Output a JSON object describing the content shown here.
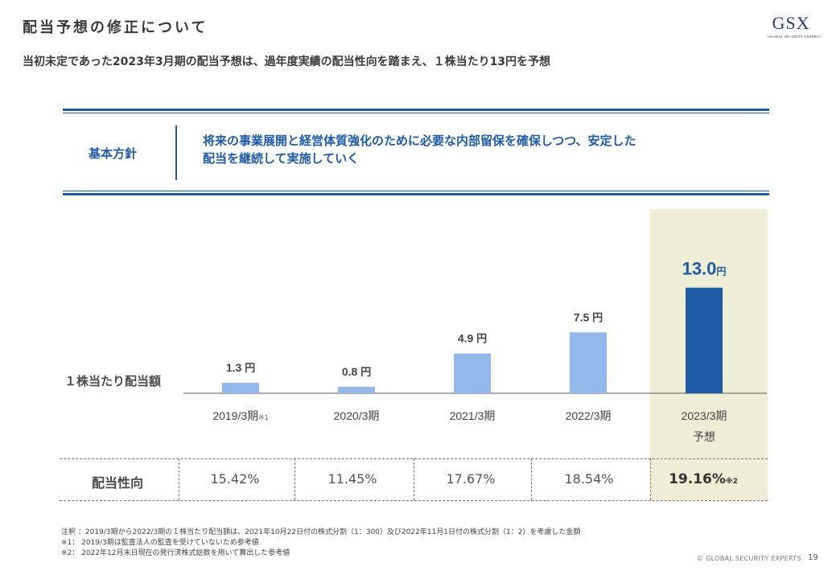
{
  "header": {
    "title": "配当予想の修正について",
    "subtitle": "当初未定であった2023年3月期の配当予想は、過年度実績の配当性向を踏まえ、１株当たり13円を予想",
    "logo_text": "GSX",
    "logo_sub": "GLOBAL SECURITY EXPERTS"
  },
  "policy": {
    "label": "基本方針",
    "text_line1": "将来の事業展開と経営体質強化のために必要な内部留保を確保しつつ、安定した",
    "text_line2": "配当を継続して実施していく"
  },
  "colors": {
    "bar_actual": "#95b8ec",
    "bar_forecast": "#1f5aa6",
    "highlight": "#eeeed6",
    "accent": "#1f5aa6"
  },
  "chart_data": {
    "type": "bar",
    "ylabel": "１株当たり配当額",
    "categories": [
      "2019/3期",
      "2020/3期",
      "2021/3期",
      "2022/3期",
      "2023/3期"
    ],
    "category_notes": [
      "※1",
      "",
      "",
      "",
      ""
    ],
    "category_sublabels": [
      "",
      "",
      "",
      "",
      "予想"
    ],
    "values": [
      1.3,
      0.8,
      4.9,
      7.5,
      13.0
    ],
    "value_labels": [
      "1.3",
      "0.8",
      "4.9",
      "7.5",
      "13.0"
    ],
    "unit": "円",
    "forecast_index": 4
  },
  "payout": {
    "label": "配当性向",
    "values": [
      "15.42%",
      "11.45%",
      "17.67%",
      "18.54%",
      "19.16%"
    ],
    "last_note": "※2"
  },
  "notes": [
    "注釈 ：2019/3期から2022/3期の１株当たり配当額は、2021年10月22日付の株式分割（1：300）及び2022年11月1日付の株式分割（1：2）を考慮した金額",
    "※1： 2019/3期は監査法人の監査を受けていないため参考値",
    "※2： 2022年12月末日現在の発行済株式総数を用いて算出した参考値"
  ],
  "footer": {
    "copyright": "© GLOBAL SECURITY EXPERTS",
    "page": "19"
  }
}
